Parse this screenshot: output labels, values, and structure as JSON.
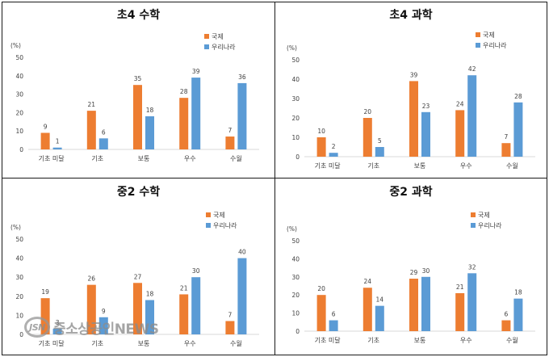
{
  "colors": {
    "intl": "#ED7D31",
    "korea": "#5B9BD5",
    "axis": "#d9d9d9",
    "text": "#404040"
  },
  "watermark": {
    "logo": "JSN",
    "text": "중소상공인NEWS"
  },
  "chart_data": [
    {
      "type": "bar",
      "title": "초4 수학",
      "ylabel": "(%)",
      "ylim": [
        0,
        50
      ],
      "yticks": [
        "0",
        "10",
        "20",
        "30",
        "40",
        "50"
      ],
      "categories": [
        "기초 미달",
        "기초",
        "보통",
        "우수",
        "수월"
      ],
      "series": [
        {
          "name": "국제",
          "values": [
            9,
            21,
            35,
            28,
            7
          ],
          "labels": [
            "9",
            "21",
            "35",
            "28",
            "7"
          ]
        },
        {
          "name": "우리나라",
          "values": [
            1,
            6,
            18,
            39,
            36
          ],
          "labels": [
            "1",
            "6",
            "18",
            "39",
            "36"
          ]
        }
      ]
    },
    {
      "type": "bar",
      "title": "초4 과학",
      "ylabel": "(%)",
      "ylim": [
        0,
        50
      ],
      "yticks": [
        "0",
        "10",
        "20",
        "30",
        "40",
        "50"
      ],
      "categories": [
        "기초 미달",
        "기초",
        "보통",
        "우수",
        "수월"
      ],
      "series": [
        {
          "name": "국제",
          "values": [
            10,
            20,
            39,
            24,
            7
          ],
          "labels": [
            "10",
            "20",
            "39",
            "24",
            "7"
          ]
        },
        {
          "name": "우리나라",
          "values": [
            2,
            5,
            23,
            42,
            28
          ],
          "labels": [
            "2",
            "5",
            "23",
            "42",
            "28"
          ]
        }
      ]
    },
    {
      "type": "bar",
      "title": "중2 수학",
      "ylabel": "(%)",
      "ylim": [
        0,
        50
      ],
      "yticks": [
        "0",
        "10",
        "20",
        "30",
        "40",
        "50"
      ],
      "categories": [
        "기초 미달",
        "기초",
        "보통",
        "우수",
        "수월"
      ],
      "series": [
        {
          "name": "국제",
          "values": [
            19,
            26,
            27,
            21,
            7
          ],
          "labels": [
            "19",
            "26",
            "27",
            "21",
            "7"
          ]
        },
        {
          "name": "우리나라",
          "values": [
            3,
            9,
            18,
            30,
            40
          ],
          "labels": [
            "3",
            "9",
            "18",
            "30",
            "40"
          ]
        }
      ]
    },
    {
      "type": "bar",
      "title": "중2 과학",
      "ylabel": "(%)",
      "ylim": [
        0,
        50
      ],
      "yticks": [
        "0",
        "10",
        "20",
        "30",
        "40",
        "50"
      ],
      "categories": [
        "기초 미달",
        "기초",
        "보통",
        "우수",
        "수월"
      ],
      "series": [
        {
          "name": "국제",
          "values": [
            20,
            24,
            29,
            21,
            6
          ],
          "labels": [
            "20",
            "24",
            "29",
            "21",
            "6"
          ]
        },
        {
          "name": "우리나라",
          "values": [
            6,
            14,
            30,
            32,
            18
          ],
          "labels": [
            "6",
            "14",
            "30",
            "32",
            "18"
          ]
        }
      ]
    }
  ]
}
